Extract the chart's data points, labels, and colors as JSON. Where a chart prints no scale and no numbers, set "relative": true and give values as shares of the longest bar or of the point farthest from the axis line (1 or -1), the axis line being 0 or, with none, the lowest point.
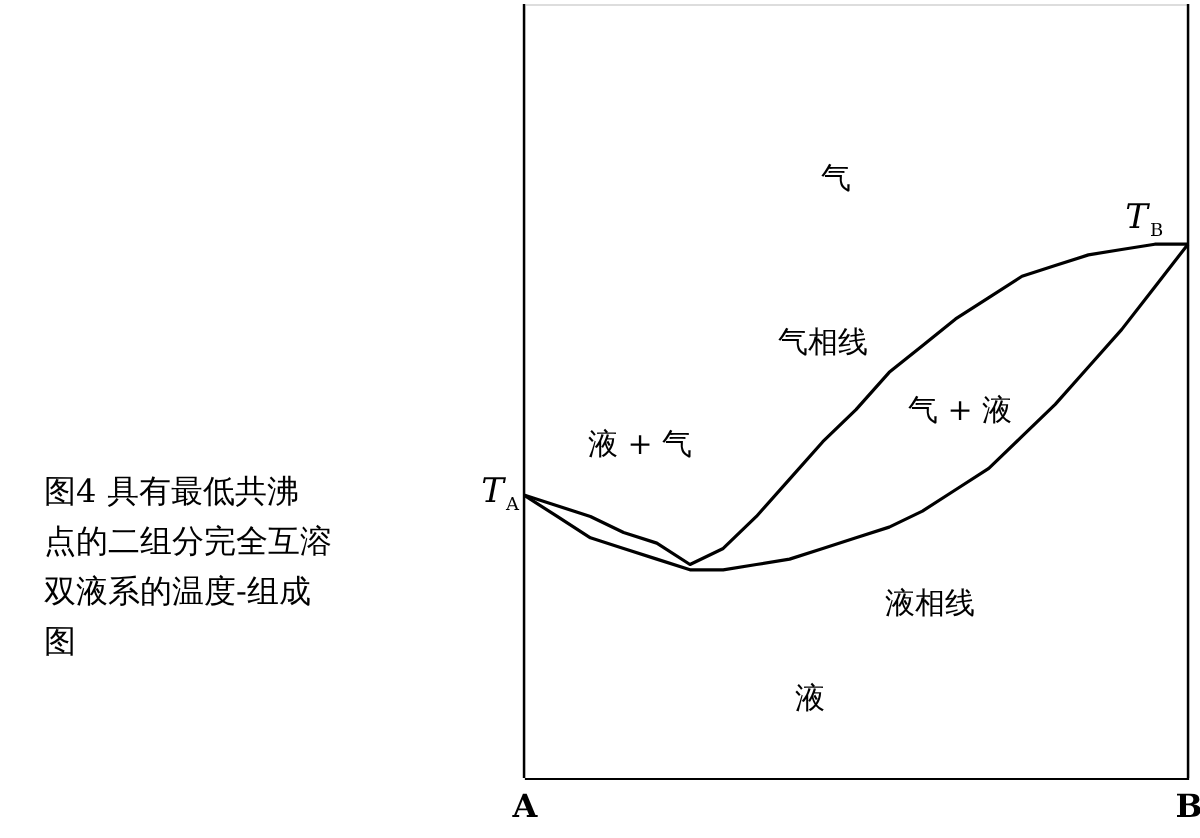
{
  "chart_data": {
    "type": "line",
    "relative": true,
    "categories": [
      "A",
      null,
      null,
      null,
      null,
      null,
      null,
      null,
      null,
      null,
      null,
      null,
      null,
      null,
      null,
      null,
      null,
      null,
      null,
      null,
      "B"
    ],
    "series": [
      {
        "name": "气相线",
        "color": "#000000",
        "values": [
          0.53,
          0.51,
          0.49,
          0.46,
          0.44,
          0.4,
          0.43,
          0.49,
          0.56,
          0.63,
          0.69,
          0.76,
          0.81,
          0.86,
          0.9,
          0.94,
          0.96,
          0.98,
          0.99,
          1.0,
          1.0
        ]
      },
      {
        "name": "液相线",
        "color": "#000000",
        "values": [
          0.53,
          0.49,
          0.45,
          0.43,
          0.41,
          0.39,
          0.39,
          0.4,
          0.41,
          0.43,
          0.45,
          0.47,
          0.5,
          0.54,
          0.58,
          0.64,
          0.7,
          0.77,
          0.84,
          0.92,
          1.0
        ]
      }
    ],
    "annotations": [
      "T$_{A}$",
      "T$_{B}$",
      "气",
      "液 + 气",
      "气 + 液",
      "液",
      "图4 具有最低共沸点的二组分完全互溶双液系的温度-组成图"
    ]
  }
}
